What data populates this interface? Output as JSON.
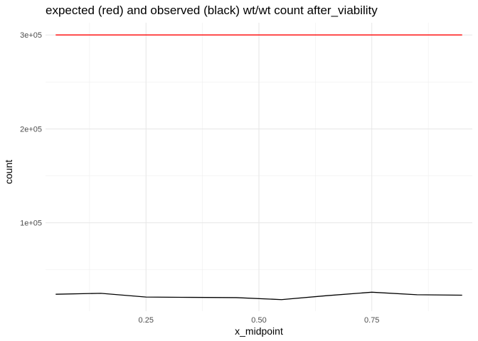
{
  "chart_data": {
    "type": "line",
    "title": "expected (red) and observed (black) wt/wt count after_viability",
    "xlabel": "x_midpoint",
    "ylabel": "count",
    "xlim": [
      0.0275,
      0.9725
    ],
    "ylim": [
      6000,
      313000
    ],
    "x_ticks": [
      0.25,
      0.5,
      0.75
    ],
    "x_tick_labels": [
      "0.25",
      "0.50",
      "0.75"
    ],
    "x_minor_ticks": [
      0.125,
      0.375,
      0.625,
      0.875
    ],
    "y_ticks": [
      100000,
      200000,
      300000
    ],
    "y_tick_labels": [
      "1e+05",
      "2e+05",
      "3e+05"
    ],
    "y_minor_ticks": [
      50000,
      150000,
      250000
    ],
    "grid": true,
    "x": [
      0.05,
      0.15,
      0.25,
      0.35,
      0.45,
      0.55,
      0.65,
      0.75,
      0.85,
      0.95
    ],
    "series": [
      {
        "color": "#ff0000",
        "values": [
          300000,
          300000,
          300000,
          300000,
          300000,
          300000,
          300000,
          300000,
          300000,
          300000
        ]
      },
      {
        "color": "#000000",
        "values": [
          24000,
          25000,
          21000,
          20700,
          20400,
          18300,
          22500,
          26200,
          23500,
          23000
        ]
      }
    ]
  }
}
